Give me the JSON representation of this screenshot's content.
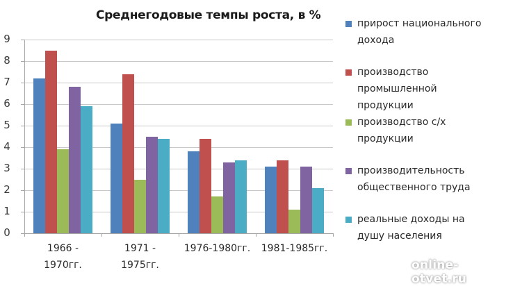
{
  "chart_data": {
    "type": "bar",
    "title": "Среднегодовые темпы роста, в %",
    "xlabel": "",
    "ylabel": "",
    "ylim": [
      0,
      9
    ],
    "yticks": [
      0,
      1,
      2,
      3,
      4,
      5,
      6,
      7,
      8,
      9
    ],
    "grid": true,
    "legend_position": "right",
    "categories": [
      "1966 - 1970гг.",
      "1971 - 1975гг.",
      "1976-1980гг.",
      "1981-1985гг."
    ],
    "category_labels_display": [
      [
        "1966 -",
        "1970гг."
      ],
      [
        "1971 -",
        "1975гг."
      ],
      [
        "1976-1980гг."
      ],
      [
        "1981-1985гг."
      ]
    ],
    "series": [
      {
        "name": "прирост национального дохода",
        "color": "#4F81BD",
        "values": [
          7.2,
          5.1,
          3.8,
          3.1
        ]
      },
      {
        "name": "производство промышленной продукции",
        "color": "#C0504D",
        "values": [
          8.5,
          7.4,
          4.4,
          3.4
        ]
      },
      {
        "name": "производство с/х продукции",
        "color": "#9BBB59",
        "values": [
          3.9,
          2.5,
          1.7,
          1.1
        ]
      },
      {
        "name": "производительность общественного труда",
        "color": "#8064A2",
        "values": [
          6.8,
          4.5,
          3.3,
          3.1
        ]
      },
      {
        "name": "реальные доходы на душу населения",
        "color": "#4BACC6",
        "values": [
          5.9,
          4.4,
          3.4,
          2.1
        ]
      }
    ]
  },
  "legend": {
    "items": [
      {
        "lines": [
          "прирост национального",
          "дохода"
        ]
      },
      {
        "lines": [
          "производство",
          "промышленной",
          "продукции"
        ]
      },
      {
        "lines": [
          "производство с/х",
          "продукции"
        ]
      },
      {
        "lines": [
          "производительность",
          "общественного труда"
        ]
      },
      {
        "lines": [
          "реальные доходы на",
          "душу населения"
        ]
      }
    ]
  },
  "watermark": "online-otvet.ru"
}
